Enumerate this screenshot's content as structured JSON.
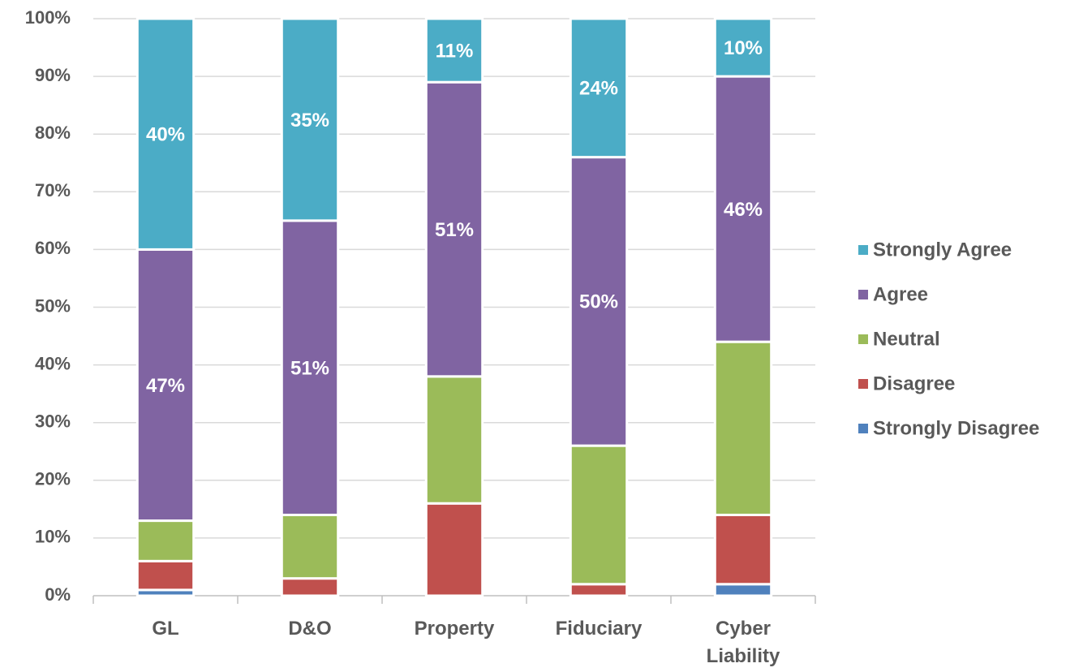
{
  "chart_data": {
    "type": "stacked_bar",
    "categories": [
      "GL",
      "D&O",
      "Property",
      "Fiduciary",
      "Cyber Liability"
    ],
    "series": [
      {
        "name": "Strongly Disagree",
        "color": "#4f81bd",
        "values": [
          1,
          0,
          0,
          0,
          2
        ]
      },
      {
        "name": "Disagree",
        "color": "#c0504d",
        "values": [
          5,
          3,
          16,
          2,
          12
        ]
      },
      {
        "name": "Neutral",
        "color": "#9bbb59",
        "values": [
          7,
          11,
          22,
          24,
          30
        ]
      },
      {
        "name": "Agree",
        "color": "#8064a2",
        "values": [
          47,
          51,
          51,
          50,
          46
        ],
        "value_labels": [
          "47%",
          "51%",
          "51%",
          "50%",
          "46%"
        ]
      },
      {
        "name": "Strongly Agree",
        "color": "#4bacc6",
        "values": [
          40,
          35,
          11,
          24,
          10
        ],
        "value_labels": [
          "40%",
          "35%",
          "11%",
          "24%",
          "10%"
        ]
      }
    ],
    "ylim": [
      0,
      100
    ],
    "yticks": [
      {
        "value": 0,
        "label": "0%"
      },
      {
        "value": 10,
        "label": "10%"
      },
      {
        "value": 20,
        "label": "20%"
      },
      {
        "value": 30,
        "label": "30%"
      },
      {
        "value": 40,
        "label": "40%"
      },
      {
        "value": 50,
        "label": "50%"
      },
      {
        "value": 60,
        "label": "60%"
      },
      {
        "value": 70,
        "label": "70%"
      },
      {
        "value": 80,
        "label": "80%"
      },
      {
        "value": 90,
        "label": "90%"
      },
      {
        "value": 100,
        "label": "100%"
      }
    ],
    "grid": true,
    "legend": "right"
  }
}
